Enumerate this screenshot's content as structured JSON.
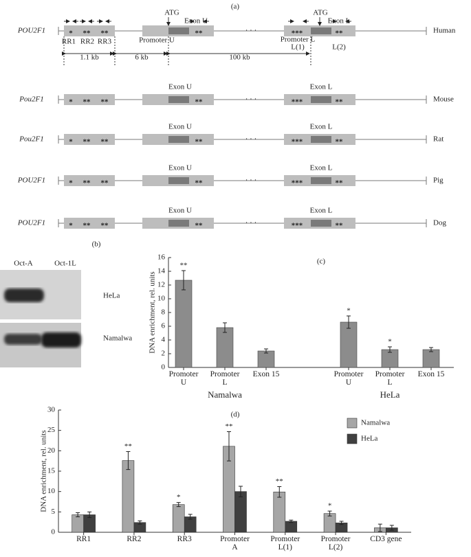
{
  "diagram": {
    "label": "(a)",
    "rows": [
      {
        "gene": "POU2F1",
        "species": "Human"
      },
      {
        "gene": "Pou2F1",
        "species": "Mouse"
      },
      {
        "gene": "Pou2F1",
        "species": "Rat"
      },
      {
        "gene": "POU2F1",
        "species": "Pig"
      },
      {
        "gene": "POU2F1",
        "species": "Dog"
      }
    ],
    "exon_u": "Exon U",
    "exon_l": "Exon L",
    "atg": "ATG",
    "regions": [
      "RR1",
      "RR2",
      "RR3"
    ],
    "promoter_u": "Promoter U",
    "promoter_l": "Promoter L",
    "l1": "L(1)",
    "l2": "L(2)",
    "distances": [
      "1.1 kb",
      "6 kb",
      "100 kb"
    ],
    "ellipsis": "· · ·",
    "box_marks": {
      "rr": [
        "*",
        "**",
        "**"
      ],
      "exon_u": "**",
      "exon_l": [
        "***",
        "**"
      ]
    }
  },
  "gel": {
    "label": "(b)",
    "lanes": [
      "Oct-A",
      "Oct-1L"
    ],
    "cells": [
      "HeLa",
      "Namalwa"
    ]
  },
  "chart_data": [
    {
      "type": "bar",
      "label": "(c)",
      "ylabel": "DNA enrichment, rel. units",
      "categories": [
        "Promoter\nU",
        "Promoter\nL",
        "Exon 15",
        "Promoter\nU",
        "Promoter\nL",
        "Exon 15"
      ],
      "groups": [
        "Namalwa",
        "HeLa"
      ],
      "values": [
        12.7,
        5.8,
        2.4,
        6.6,
        2.6,
        2.6
      ],
      "errors": [
        1.4,
        0.7,
        0.3,
        0.9,
        0.4,
        0.3
      ],
      "significance": [
        "**",
        null,
        null,
        "*",
        "*",
        null
      ],
      "color": "#8c8c8c",
      "ylim": [
        0,
        16
      ],
      "yticks": [
        0,
        2,
        4,
        6,
        8,
        10,
        12,
        14,
        16
      ]
    },
    {
      "type": "grouped_bar",
      "label": "(d)",
      "ylabel": "DNA enrichment, rel. units",
      "categories": [
        "RR1",
        "RR2",
        "RR3",
        "Promoter\nA",
        "Promoter\nL(1)",
        "Promoter\nL(2)",
        "CD3 gene"
      ],
      "series": [
        {
          "name": "Namalwa",
          "color": "#a6a6a6",
          "values": [
            4.3,
            17.6,
            6.8,
            21.1,
            9.9,
            4.6,
            1.1
          ],
          "errors": [
            0.5,
            2.2,
            0.5,
            3.6,
            1.3,
            0.6,
            0.9
          ],
          "significance": [
            null,
            "**",
            "*",
            "**",
            "**",
            "*",
            null
          ]
        },
        {
          "name": "HeLa",
          "color": "#404040",
          "values": [
            4.3,
            2.4,
            3.8,
            10.0,
            2.7,
            2.3,
            1.1
          ],
          "errors": [
            0.7,
            0.4,
            0.6,
            1.3,
            0.3,
            0.4,
            0.6
          ]
        }
      ],
      "legend": "top-right",
      "ylim": [
        0,
        30
      ],
      "yticks": [
        0,
        5,
        10,
        15,
        20,
        25,
        30
      ]
    }
  ]
}
